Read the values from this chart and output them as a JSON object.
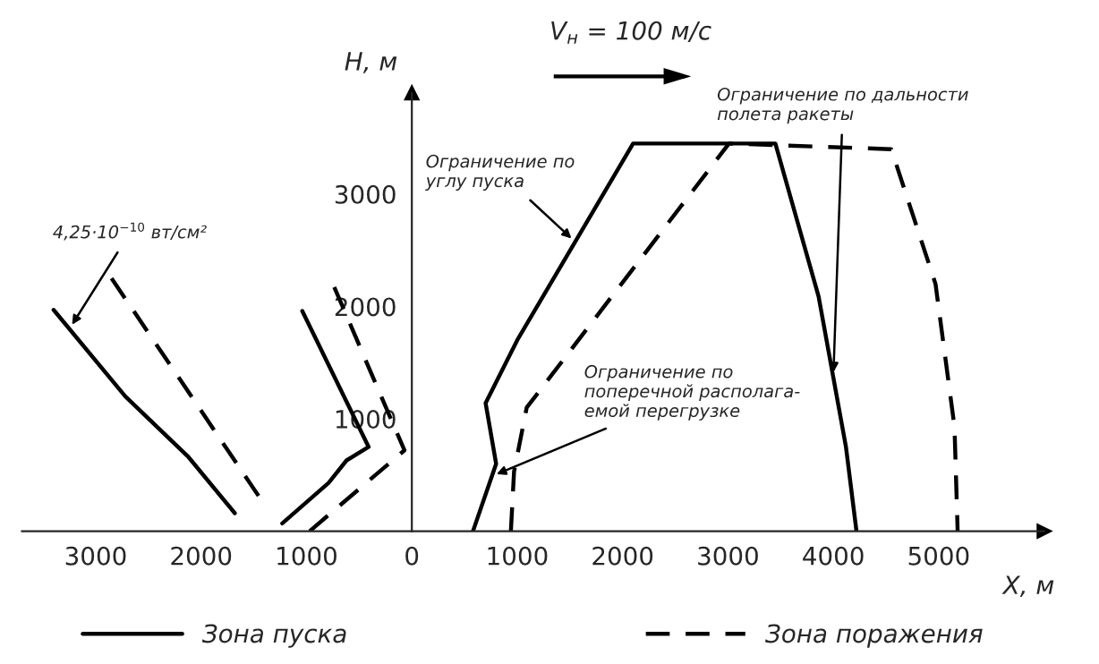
{
  "chart_data": {
    "type": "line",
    "xlabel": "X, м",
    "ylabel": "H, м",
    "series": [
      {
        "name": "Зона пуска",
        "color": "#000000",
        "line_style": "solid",
        "x": [
          -3400,
          -2720,
          -2120,
          -1680,
          null,
          -1230,
          -790,
          -620,
          -410,
          -1040,
          null,
          580,
          800,
          700,
          1000,
          2100,
          3450,
          3860,
          4120,
          4220
        ],
        "values": [
          1970,
          1200,
          660,
          160,
          null,
          70,
          430,
          630,
          750,
          1960,
          null,
          0,
          600,
          1140,
          1700,
          3450,
          3450,
          2090,
          750,
          0
        ]
      },
      {
        "name": "Зона поражения",
        "color": "#000000",
        "line_style": "dashed",
        "x": [
          -2850,
          -2200,
          -1380,
          null,
          -970,
          -70,
          -190,
          -740,
          null,
          940,
          970,
          1090,
          3010,
          4550,
          4970,
          5150,
          5180
        ],
        "values": [
          2250,
          1350,
          210,
          null,
          0,
          720,
          980,
          2180,
          null,
          0,
          530,
          1100,
          3450,
          3400,
          2200,
          930,
          0
        ]
      }
    ],
    "xlim": [
      -3700,
      6000
    ],
    "ylim": [
      0,
      3900
    ],
    "xticks": [
      {
        "value": -3000,
        "label": "3000"
      },
      {
        "value": -2000,
        "label": "2000"
      },
      {
        "value": -1000,
        "label": "1000"
      },
      0,
      1000,
      2000,
      3000,
      4000,
      5000
    ],
    "yticks": [
      1000,
      2000,
      3000
    ],
    "legend": "bottom",
    "grid": false,
    "annotations": [
      "V$_{н}$ = 100 м/с",
      {
        "text": "4,25·10$^{−10}$ вт/см²",
        "x": -3250,
        "y": 1800
      },
      {
        "text": "Ограничение по\nуглу пуска",
        "x": 1550,
        "y": 2575
      },
      {
        "text": "Ограничение по\nпоперечной располага-\nемой перегрузке",
        "x": 760,
        "y": 490
      },
      {
        "text": "Ограничение по дальности\nполета ракеты",
        "x": 4000,
        "y": 1370
      }
    ]
  }
}
